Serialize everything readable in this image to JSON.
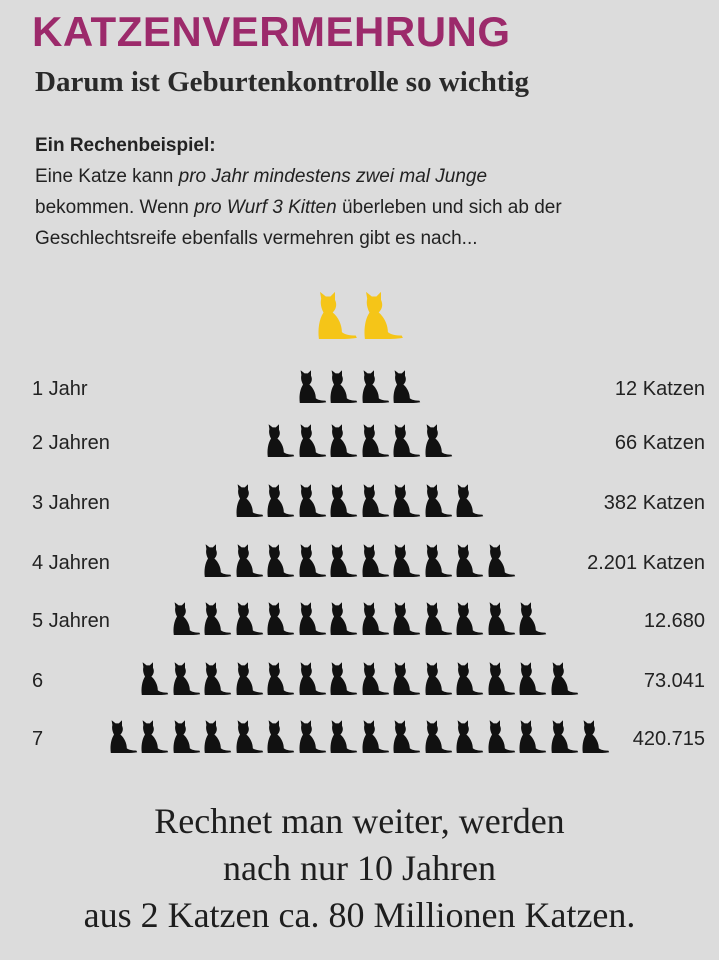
{
  "header": {
    "title": "KATZENVERMEHRUNG",
    "subtitle": "Darum ist Geburtenkontrolle so wichtig"
  },
  "intro": {
    "heading": "Ein Rechenbeispiel:",
    "line1_a": "Eine Katze kann ",
    "line1_em": "pro Jahr mindestens zwei mal Junge",
    "line2_a": "bekommen. Wenn ",
    "line2_em": "pro Wurf 3 Kitten",
    "line2_b": " überleben und sich ab der",
    "line3": "Geschlechtsreife ebenfalls vermehren gibt es nach..."
  },
  "colors": {
    "title": "#9c2a6b",
    "parent_cats": "#f5c518",
    "offspring_cats": "#111111",
    "background": "#dcdcdc"
  },
  "parent_cats": 2,
  "rows": [
    {
      "label": "1 Jahr",
      "count": "12 Katzen",
      "cats": 4
    },
    {
      "label": "2 Jahren",
      "count": "66 Katzen",
      "cats": 6
    },
    {
      "label": "3 Jahren",
      "count": "382 Katzen",
      "cats": 8
    },
    {
      "label": "4 Jahren",
      "count": "2.201 Katzen",
      "cats": 10
    },
    {
      "label": "5 Jahren",
      "count": "12.680",
      "cats": 12
    },
    {
      "label": "6",
      "count": "73.041",
      "cats": 14
    },
    {
      "label": "7",
      "count": "420.715",
      "cats": 16
    }
  ],
  "footer": {
    "line1": "Rechnet man weiter, werden",
    "line2": "nach nur 10 Jahren",
    "line3": "aus 2 Katzen ca. 80 Millionen Katzen."
  }
}
